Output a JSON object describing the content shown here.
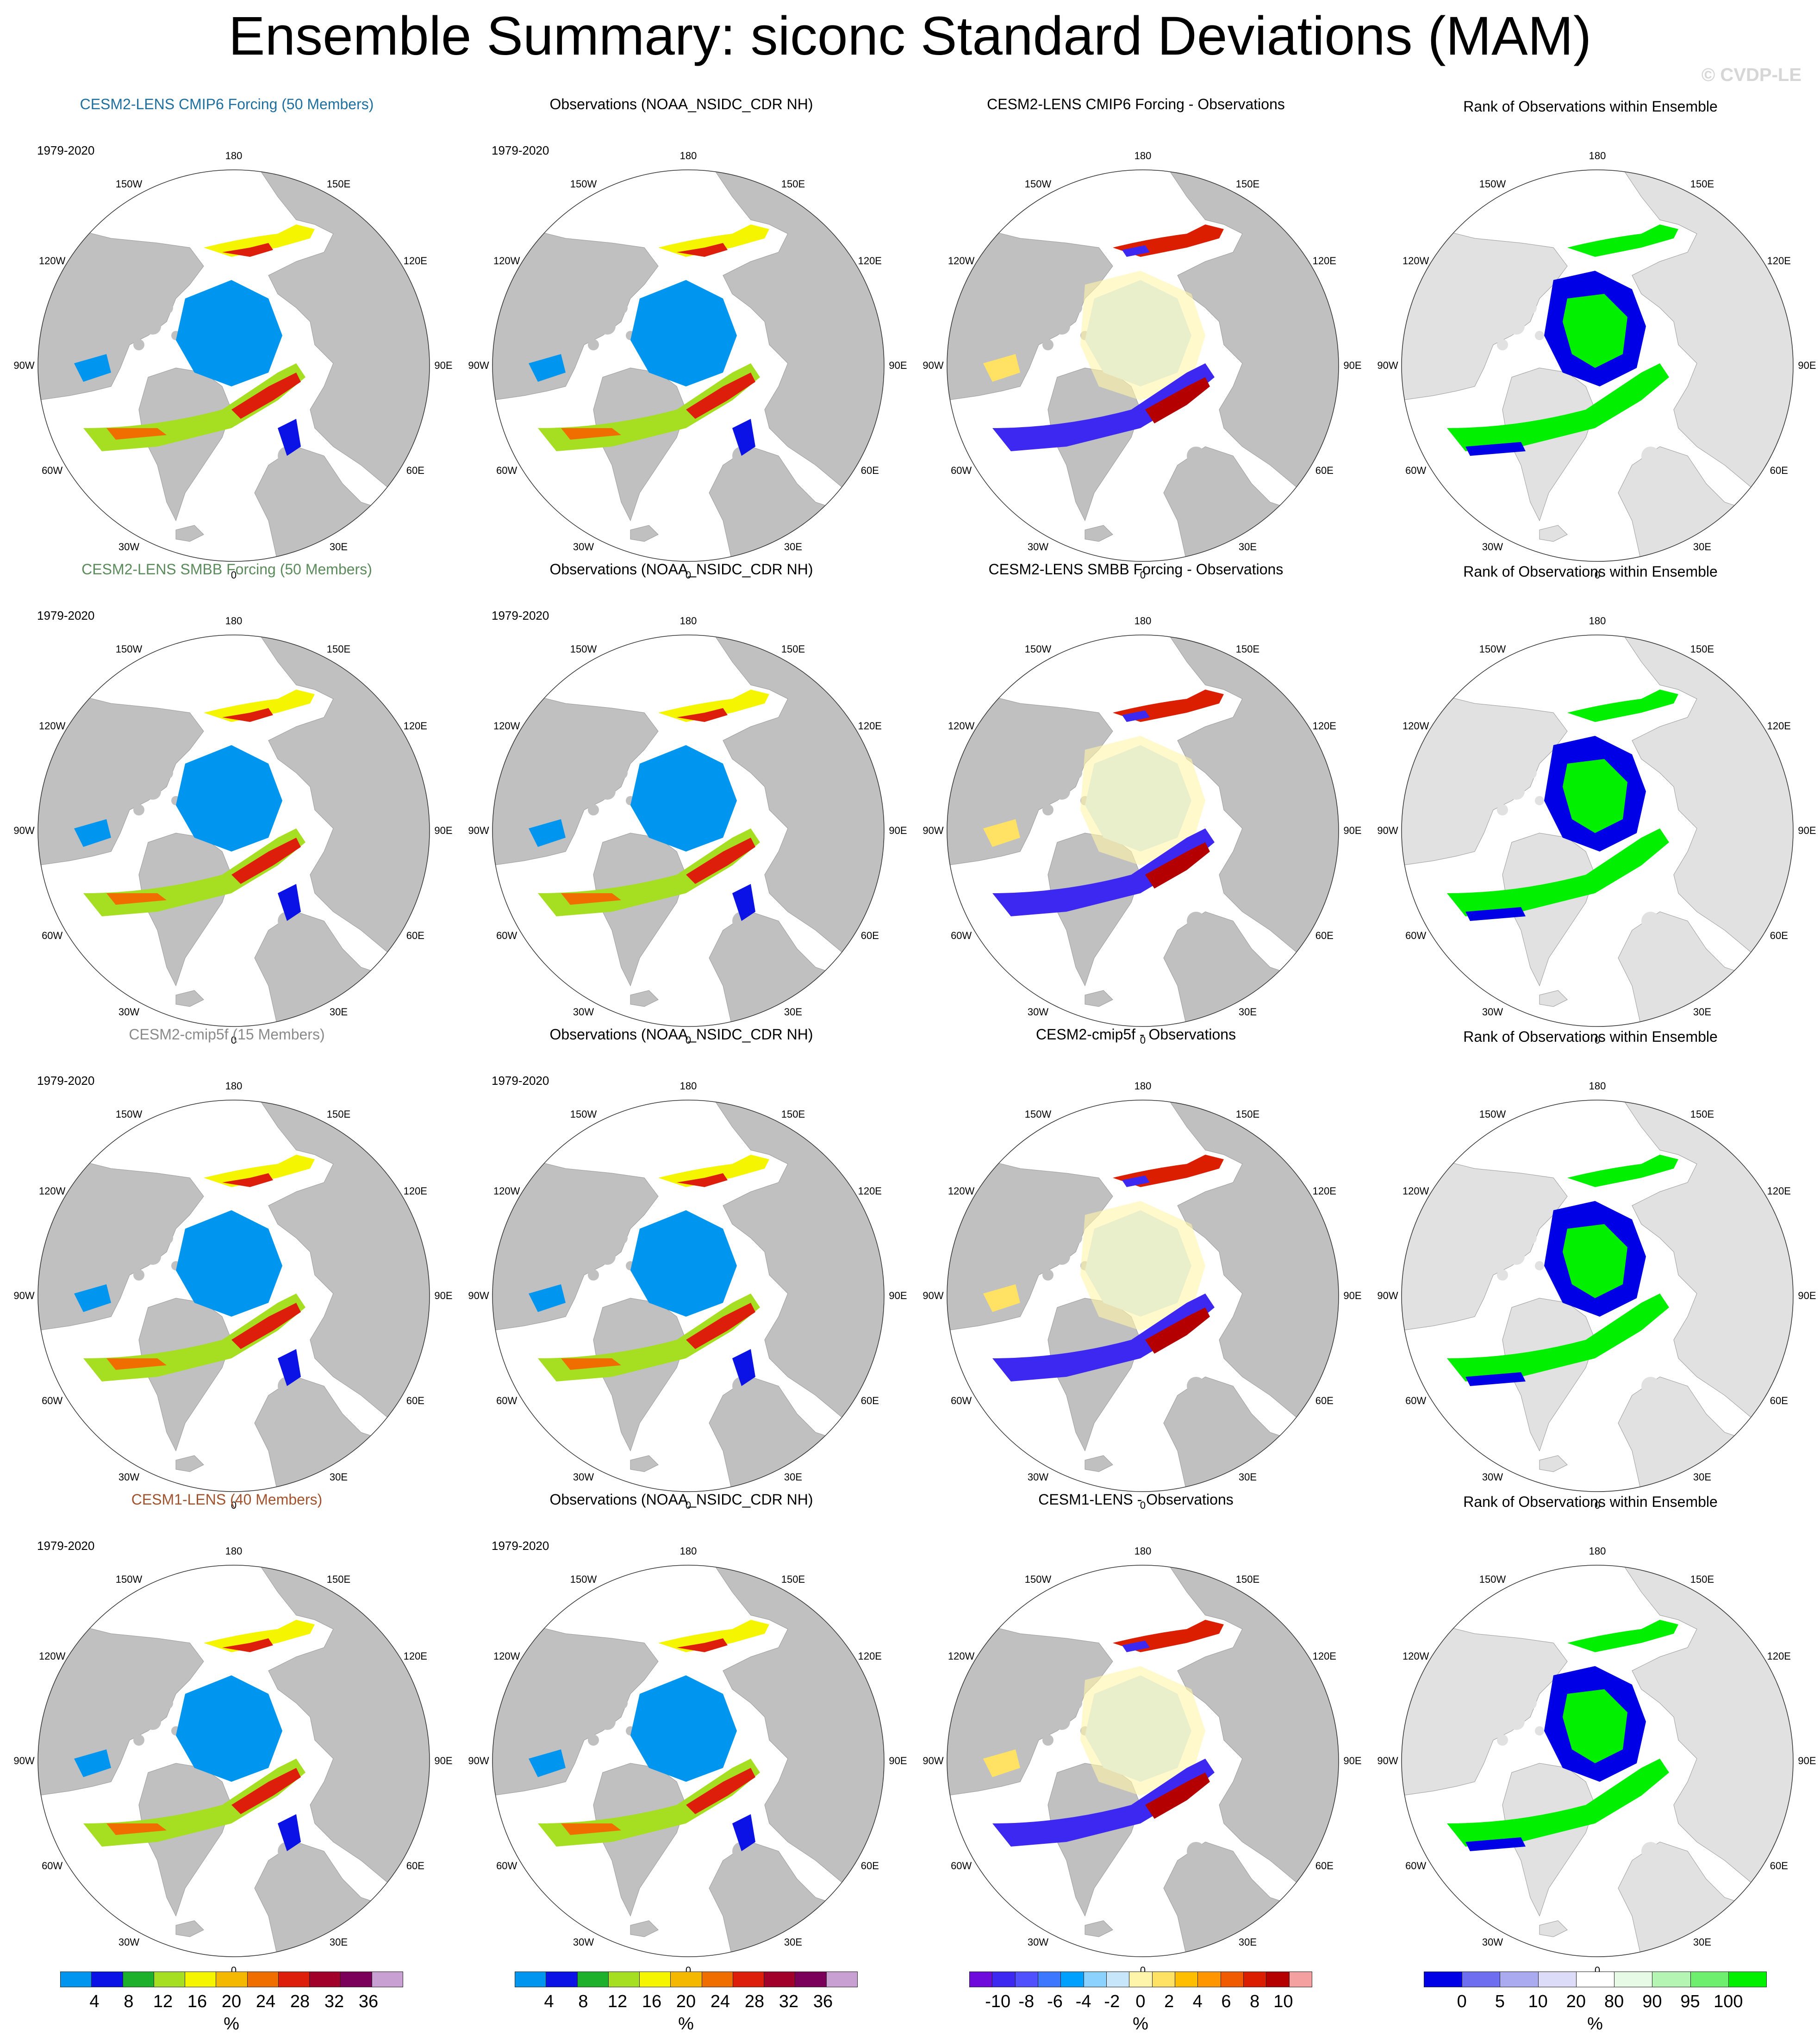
{
  "figure": {
    "title": "Ensemble Summary: siconc Standard Deviations (MAM)",
    "watermark": "© CVDP-LE",
    "period": "1979-2020",
    "lon_labels": [
      "180",
      "150E",
      "120E",
      "90E",
      "60E",
      "30E",
      "0",
      "30W",
      "60W",
      "90W",
      "120W",
      "150W"
    ]
  },
  "colors": {
    "land": "#c0c0c0",
    "outside_domain": "#ffffff",
    "ocean_open": "#ffffff",
    "rank_land": "#e1e1e1",
    "cesm2_cmip6_title": "#1f6f9f",
    "cesm2_smbb_title": "#5b8b5b",
    "cesm2_cmip5f_title": "#8a8a8a",
    "cesm1_lens_title": "#a0522d"
  },
  "rows": [
    {
      "model_title": "CESM2-LENS CMIP6 Forcing (50 Members)",
      "model_title_color": "#1f6f9f",
      "obs_title": "Observations (NOAA_NSIDC_CDR NH)",
      "diff_title": "CESM2-LENS CMIP6 Forcing - Observations",
      "rank_title": "Rank of Observations within Ensemble"
    },
    {
      "model_title": "CESM2-LENS SMBB Forcing (50 Members)",
      "model_title_color": "#5b8b5b",
      "obs_title": "Observations (NOAA_NSIDC_CDR NH)",
      "diff_title": "CESM2-LENS SMBB Forcing - Observations",
      "rank_title": "Rank of Observations within Ensemble"
    },
    {
      "model_title": "CESM2-cmip5f (15 Members)",
      "model_title_color": "#8a8a8a",
      "obs_title": "Observations (NOAA_NSIDC_CDR NH)",
      "diff_title": "CESM2-cmip5f - Observations",
      "rank_title": "Rank of Observations within Ensemble"
    },
    {
      "model_title": "CESM1-LENS (40 Members)",
      "model_title_color": "#a0522d",
      "obs_title": "Observations (NOAA_NSIDC_CDR NH)",
      "diff_title": "CESM1-LENS - Observations",
      "rank_title": "Rank of Observations within Ensemble"
    }
  ],
  "colorbars": {
    "stddev": {
      "unit": "%",
      "ticks": [
        "4",
        "8",
        "12",
        "16",
        "20",
        "24",
        "28",
        "32",
        "36"
      ],
      "colors": [
        "#0096f0",
        "#0a12e6",
        "#1cb02b",
        "#a6de21",
        "#f5f500",
        "#f5b800",
        "#f06e00",
        "#dc1e0a",
        "#a0002a",
        "#7a005a",
        "#c8a0d2"
      ]
    },
    "difference": {
      "unit": "%",
      "ticks": [
        "-10",
        "-8",
        "-6",
        "-4",
        "-2",
        "0",
        "2",
        "4",
        "6",
        "8",
        "10"
      ],
      "colors": [
        "#6e0adc",
        "#3c28f0",
        "#5050ff",
        "#3c78ff",
        "#00a0ff",
        "#8cd2ff",
        "#c8e6fa",
        "#fff5aa",
        "#ffe164",
        "#ffbe00",
        "#ff9600",
        "#f05a00",
        "#dc1e00",
        "#b40000",
        "#f5a0a0"
      ]
    },
    "rank": {
      "unit": "%",
      "ticks": [
        "0",
        "5",
        "10",
        "20",
        "80",
        "90",
        "95",
        "100"
      ],
      "colors": [
        "#0000e6",
        "#6e6ef0",
        "#aaaaf0",
        "#dcdcf8",
        "#ffffff",
        "#e6fae6",
        "#b4f5b4",
        "#6ef06e",
        "#00f000"
      ]
    }
  }
}
